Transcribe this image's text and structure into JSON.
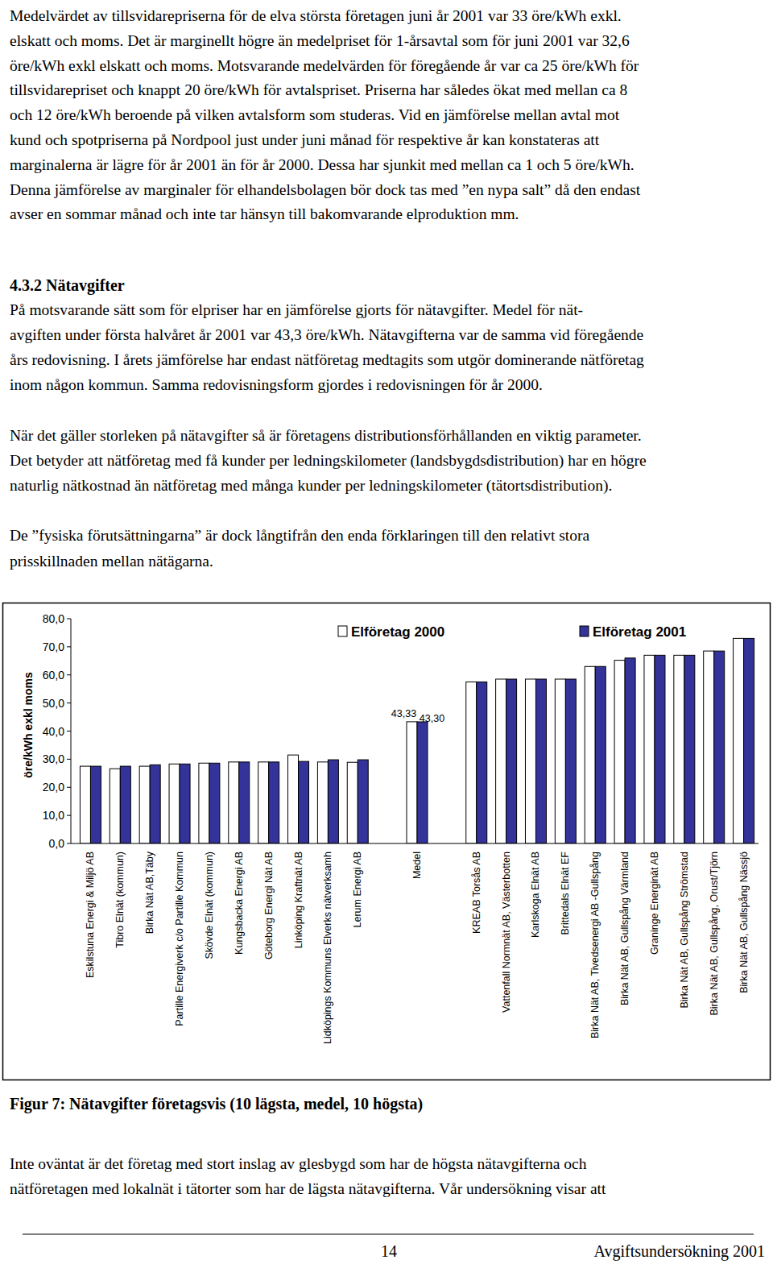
{
  "paragraphs_top": [
    [
      "Medelvärdet av tillsvidarepriserna för de elva största företagen juni år 2001 var 33 öre/kWh exkl.",
      "elskatt och moms. Det är marginellt högre än medelpriset för 1-årsavtal som för juni 2001 var 32,6",
      "öre/kWh exkl elskatt och moms. Motsvarande medelvärden för föregående år var ca 25 öre/kWh för",
      "tillsvidarepriset och knappt 20 öre/kWh för avtalspriset. Priserna har således ökat med mellan ca 8",
      "och 12 öre/kWh beroende på vilken avtalsform som studeras. Vid en jämförelse mellan avtal mot",
      "kund och spotpriserna på Nordpool just under juni månad för respektive år kan konstateras att",
      "marginalerna är lägre för år 2001 än för år 2000. Dessa har sjunkit med mellan ca 1 och 5 öre/kWh.",
      "Denna jämförelse av marginaler för elhandelsbolagen bör dock tas med ”en nypa salt” då den endast",
      "avser en sommar månad och inte tar hänsyn till bakomvarande elproduktion mm."
    ]
  ],
  "section": {
    "heading": "4.3.2 Nätavgifter",
    "paragraphs": [
      [
        "På motsvarande sätt som för elpriser har en jämförelse gjorts för nätavgifter. Medel för nät-",
        "avgiften under första halvåret år 2001 var 43,3 öre/kWh. Nätavgifterna var de samma vid föregående",
        "års redovisning. I årets jämförelse har endast nätföretag medtagits som utgör dominerande nätföretag",
        "inom någon kommun. Samma redovisningsform gjordes i redovisningen för år 2000."
      ],
      [
        "När det gäller storleken på nätavgifter så är företagens distributionsförhållanden en viktig parameter.",
        "Det betyder att nätföretag med få kunder per ledningskilometer (landsbygdsdistribution) har en högre",
        "naturlig nätkostnad än nätföretag med många kunder per ledningskilometer (tätortsdistribution)."
      ],
      [
        "De ”fysiska förutsättningarna” är dock långtifrån den enda förklaringen till den relativt stora",
        "prisskillnaden mellan nätägarna."
      ]
    ]
  },
  "chart_data": {
    "type": "bar",
    "y_label": "öre/kWh exkl moms",
    "legend": "top",
    "grid": false,
    "categories": [
      "Eskilstuna Energi & Miljö AB",
      "Tibro Elnät (kommun)",
      "Birka Nät AB,Täby",
      "Partille Energiverk c/o Partille Kommun",
      "Skövde Elnät (kommun)",
      "Kungsbacka Energi AB",
      "Göteborg Energi Nät AB",
      "Linköping Kraftnät AB",
      "Lidköpings Kommuns Elverks nätverksamh",
      "Lerum Energi AB",
      null,
      "Medel",
      null,
      "KREAB Torsås AB",
      "Vattenfall Normnät AB, Västerbotten",
      "Karlskoga Elnät AB",
      "Brittedals Elnät EF",
      "Birka Nät AB, Tivedsenergi AB -Gullspång",
      "Birka Nät AB, Gullspång Värmland",
      "Graninge Energinät AB",
      "Birka Nät AB, Gullspång Strömstad",
      "Birka Nät AB, Gullspång, Orust/Tjörn",
      "Birka Nät AB, Gullspång Nässjö"
    ],
    "series": [
      {
        "name": "Elföretag 2000",
        "color": "#ffffff",
        "values": [
          27.5,
          26.6,
          27.5,
          28.3,
          28.6,
          29.0,
          29.0,
          31.5,
          29.0,
          28.9,
          null,
          43.33,
          null,
          57.5,
          58.5,
          58.5,
          58.5,
          63.0,
          65.2,
          67.0,
          67.0,
          68.5,
          73.0
        ],
        "value_labels": [
          null,
          null,
          null,
          null,
          null,
          null,
          null,
          null,
          null,
          null,
          null,
          "43,33",
          null,
          null,
          null,
          null,
          null,
          null,
          null,
          null,
          null,
          null,
          null
        ]
      },
      {
        "name": "Elföretag 2001",
        "color": "#333399",
        "values": [
          27.5,
          27.5,
          28.0,
          28.3,
          28.6,
          29.0,
          29.0,
          29.2,
          29.8,
          29.8,
          null,
          43.3,
          null,
          57.5,
          58.5,
          58.5,
          58.5,
          63.0,
          66.0,
          67.0,
          67.0,
          68.5,
          73.0
        ],
        "value_labels": [
          null,
          null,
          null,
          null,
          null,
          null,
          null,
          null,
          null,
          null,
          null,
          "43,30",
          null,
          null,
          null,
          null,
          null,
          null,
          null,
          null,
          null,
          null,
          null
        ]
      }
    ],
    "ylim": [
      0,
      80
    ],
    "yticks": [
      {
        "value": 0,
        "label": "0,0"
      },
      {
        "value": 10,
        "label": "10,0"
      },
      {
        "value": 20,
        "label": "20,0"
      },
      {
        "value": 30,
        "label": "30,0"
      },
      {
        "value": 40,
        "label": "40,0"
      },
      {
        "value": 50,
        "label": "50,0"
      },
      {
        "value": 60,
        "label": "60,0"
      },
      {
        "value": 70,
        "label": "70,0"
      },
      {
        "value": 80,
        "label": "80,0"
      }
    ]
  },
  "caption": "Figur 7: Nätavgifter företagsvis (10 lägsta, medel, 10 högsta)",
  "paragraph_after": [
    "Inte oväntat är det företag med stort inslag av glesbygd som har de högsta nätavgifterna och",
    "nätföretagen med lokalnät i tätorter som har de lägsta nätavgifterna. Vår undersökning visar att"
  ],
  "footer": {
    "page": "14",
    "title": "Avgiftsundersökning 2001"
  }
}
